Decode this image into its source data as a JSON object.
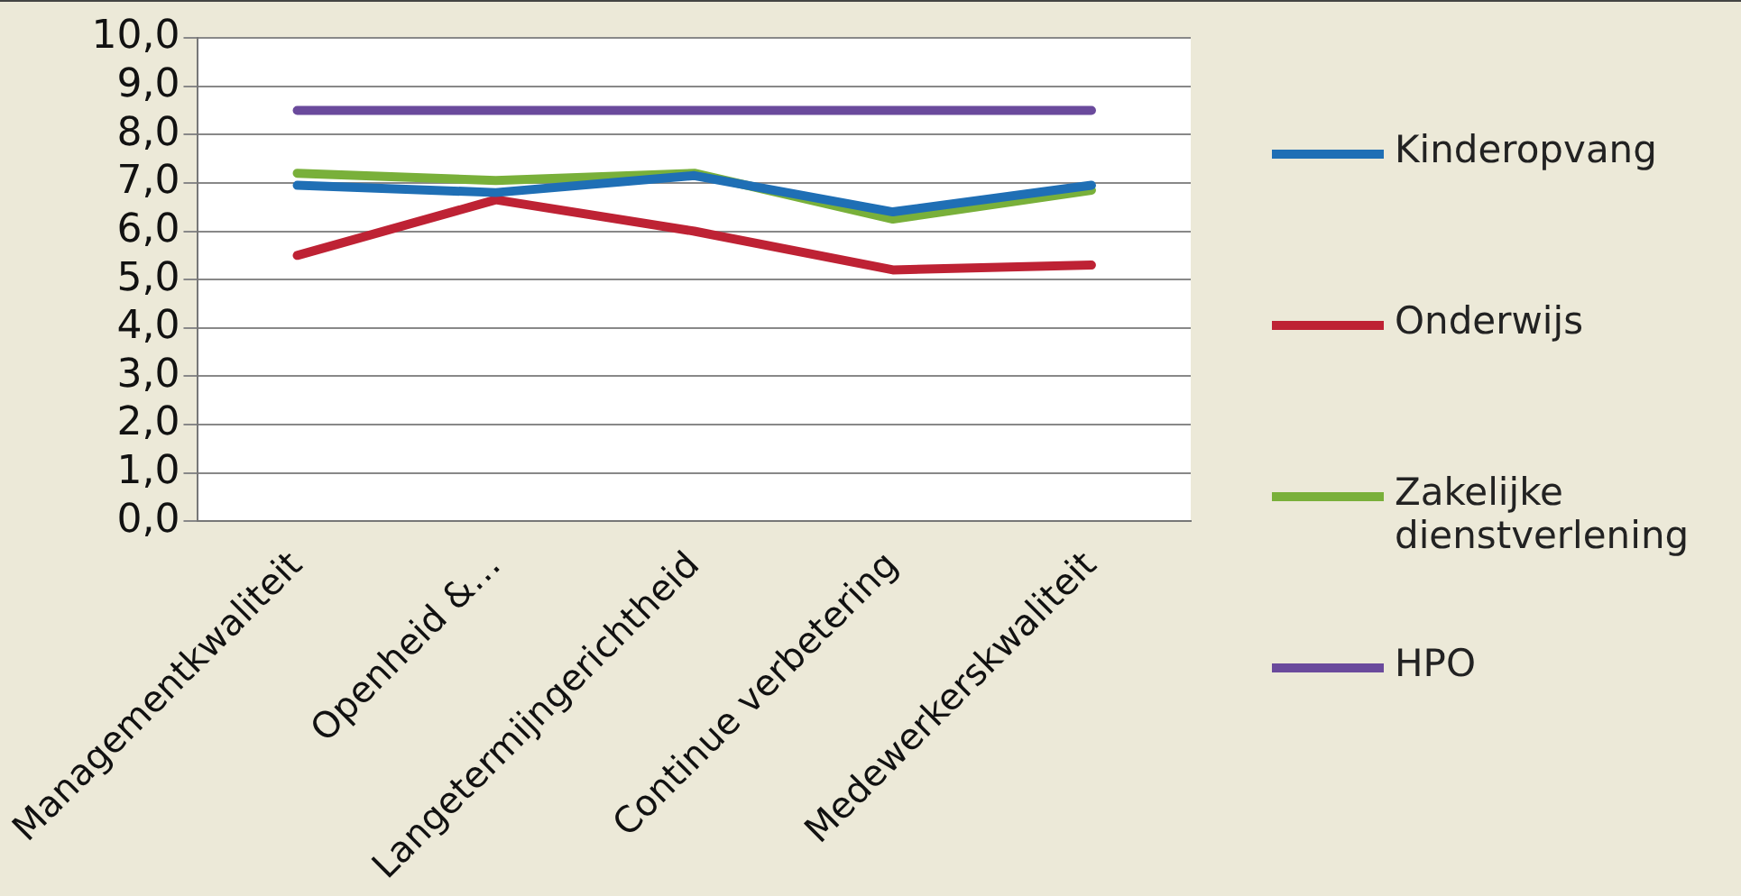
{
  "chart_data": {
    "type": "line",
    "categories": [
      "Managementkwaliteit",
      "Openheid &…",
      "Langetermijngerichtheid",
      "Continue verbetering",
      "Medewerkerskwaliteit"
    ],
    "series": [
      {
        "name": "Kinderopvang",
        "color": "#1f6fb5",
        "values": [
          6.95,
          6.8,
          7.15,
          6.4,
          6.95
        ]
      },
      {
        "name": "Onderwijs",
        "color": "#be2234",
        "values": [
          5.5,
          6.65,
          6.0,
          5.2,
          5.3
        ]
      },
      {
        "name": "Zakelijke dienstverlening",
        "color": "#79b03a",
        "values": [
          7.2,
          7.05,
          7.2,
          6.25,
          6.85
        ]
      },
      {
        "name": "HPO",
        "color": "#6a4a9c",
        "values": [
          8.5,
          8.5,
          8.5,
          8.5,
          8.5
        ]
      }
    ],
    "ylim": [
      0,
      10
    ],
    "yticks": [
      {
        "value": 0,
        "label": "0,0"
      },
      {
        "value": 1,
        "label": "1,0"
      },
      {
        "value": 2,
        "label": "2,0"
      },
      {
        "value": 3,
        "label": "3,0"
      },
      {
        "value": 4,
        "label": "4,0"
      },
      {
        "value": 5,
        "label": "5,0"
      },
      {
        "value": 6,
        "label": "6,0"
      },
      {
        "value": 7,
        "label": "7,0"
      },
      {
        "value": 8,
        "label": "8,0"
      },
      {
        "value": 9,
        "label": "9,0"
      },
      {
        "value": 10,
        "label": "10,0"
      }
    ],
    "grid": "y",
    "legend": "right",
    "marker": "none",
    "line_style": "solid"
  }
}
